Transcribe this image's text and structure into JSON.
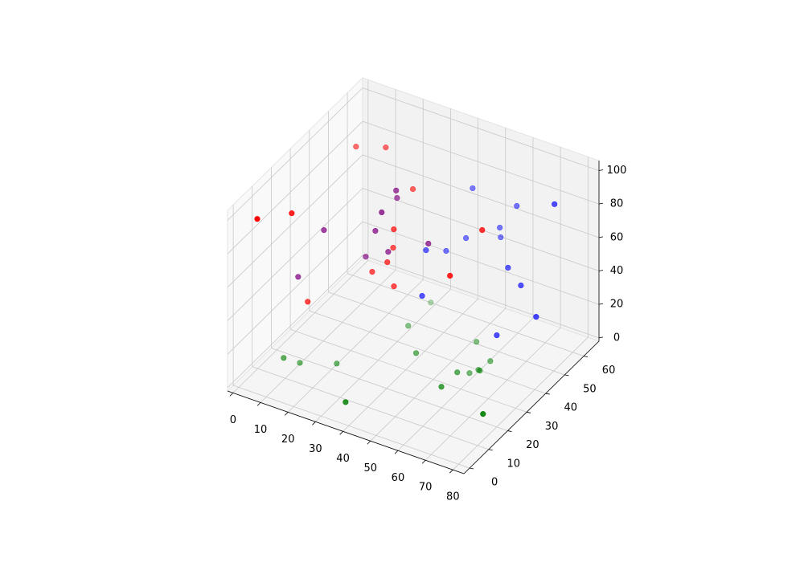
{
  "chart_data": {
    "type": "scatter3d",
    "xlim": [
      -2,
      84
    ],
    "ylim": [
      -3,
      68
    ],
    "zlim": [
      -2,
      106
    ],
    "xticks": [
      0,
      10,
      20,
      30,
      40,
      50,
      60,
      70,
      80
    ],
    "yticks": [
      0,
      10,
      20,
      30,
      40,
      50,
      60
    ],
    "zticks": [
      0,
      20,
      40,
      60,
      80,
      100
    ],
    "grid": true,
    "depthshade": true,
    "series": [
      {
        "color": "red",
        "x": [
          1,
          6.4,
          14.3,
          10,
          18.2,
          30,
          31.3,
          31.6,
          31.7,
          28,
          35.5,
          54.5,
          57.5
        ],
        "y": [
          8.3,
          18.6,
          15.6,
          47.2,
          51,
          48.2,
          36.3,
          35.5,
          32.3,
          29.7,
          30.3,
          32.3,
          44.9
        ],
        "z": [
          90,
          85,
          40,
          95,
          95,
          80,
          70,
          60,
          55,
          50,
          45,
          60,
          75
        ]
      },
      {
        "color": "purple",
        "x": [
          12.8,
          9.5,
          28.2,
          28.2,
          28,
          26.8,
          31.4,
          24.4,
          42.2
        ],
        "y": [
          26.3,
          17.5,
          42,
          42.5,
          34.7,
          33.1,
          33.2,
          31.5,
          38.7
        ],
        "z": [
          70,
          50,
          85,
          80,
          80,
          70,
          60,
          55,
          65
        ]
      },
      {
        "color": "blue",
        "x": [
          43.5,
          57.9,
          72.1,
          54.7,
          55.3,
          46.2,
          42.1,
          38.8,
          63.3,
          69.3,
          43.4,
          77.4,
          67.3
        ],
        "y": [
          60.1,
          62.5,
          61.8,
          58.2,
          57.8,
          52.7,
          48.2,
          42.4,
          50.1,
          48.2,
          33.7,
          44.5,
          38.4
        ],
        "z": [
          75,
          70,
          80,
          60,
          55,
          55,
          50,
          55,
          50,
          45,
          40,
          35,
          25
        ]
      },
      {
        "color": "green",
        "x": [
          9.5,
          12.9,
          23,
          35.9,
          36.4,
          43.7,
          36.1,
          57.4,
          57.7,
          58.9,
          56.8,
          60.4,
          63.3,
          63.5,
          76
        ],
        "y": [
          9.9,
          13.5,
          18.3,
          4.3,
          36.5,
          30.1,
          48.8,
          23.6,
          31.5,
          36.2,
          42.9,
          38.7,
          35.3,
          40.5,
          18.6
        ],
        "z": [
          10,
          5,
          5,
          5,
          15,
          10,
          15,
          5,
          5,
          0,
          10,
          0,
          5,
          5,
          5
        ]
      }
    ]
  }
}
